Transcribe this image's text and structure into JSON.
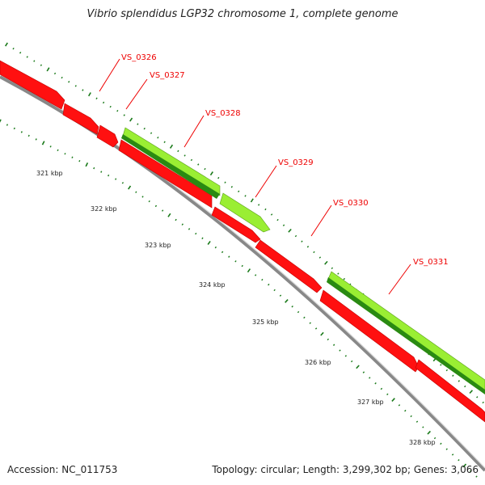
{
  "title": "Vibrio splendidus LGP32 chromosome 1, complete genome",
  "footer": {
    "accession": "Accession: NC_011753",
    "summary": "Topology: circular; Length: 3,299,302 bp; Genes: 3,066"
  },
  "colors": {
    "reverse_gene": "#ff0000",
    "reverse_gene_dark": "#b80000",
    "forward_gene_light": "#99ee33",
    "forward_gene_dark": "#2a8a12",
    "backbone": "#8a8a8a",
    "tick": "#1a7a1a",
    "label": "#ee0000"
  },
  "genes": [
    {
      "label": "VS_0326",
      "strand": "reverse"
    },
    {
      "label": "VS_0327",
      "strand": "reverse"
    },
    {
      "label": "VS_0328",
      "strand": "forward"
    },
    {
      "label": "VS_0329",
      "strand": "forward"
    },
    {
      "label": "VS_0330",
      "strand": "reverse"
    },
    {
      "label": "VS_0331",
      "strand": "forward"
    }
  ],
  "ticks": [
    "321 kbp",
    "322 kbp",
    "323 kbp",
    "324 kbp",
    "325 kbp",
    "326 kbp",
    "327 kbp",
    "328 kbp"
  ]
}
